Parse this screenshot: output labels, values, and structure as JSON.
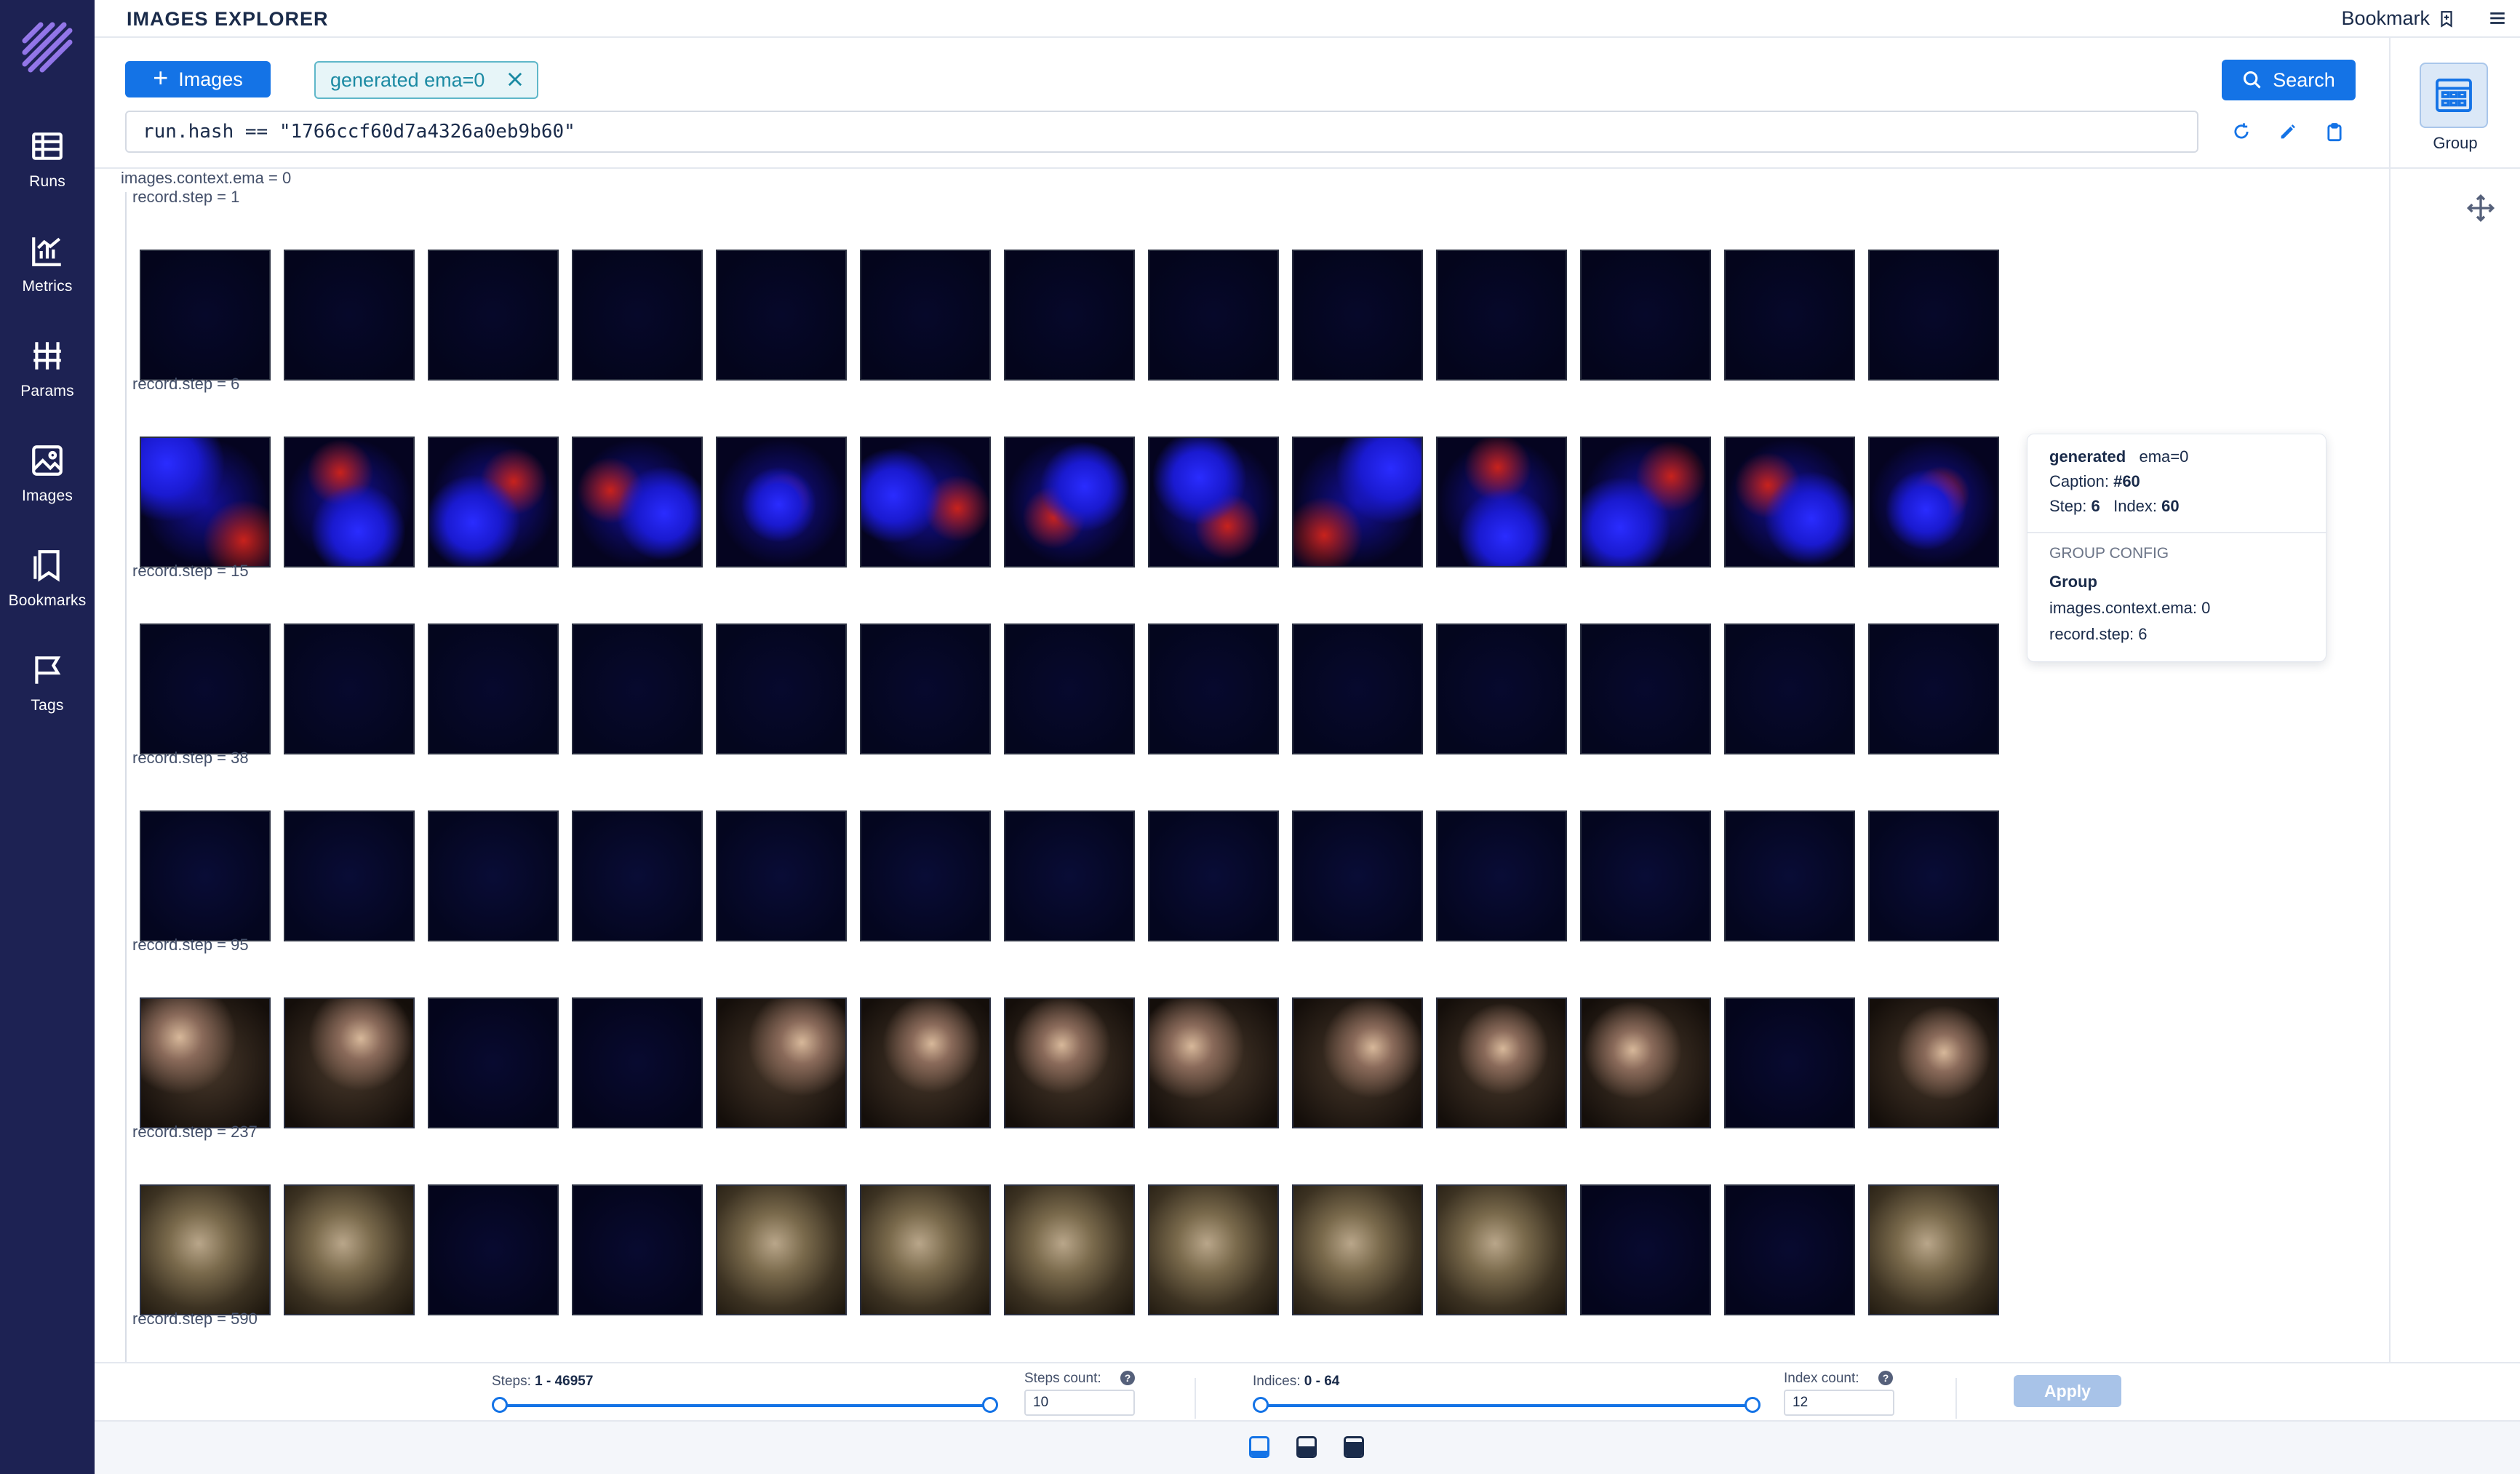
{
  "nav": {
    "items": [
      {
        "label": "Runs",
        "icon": "table-icon"
      },
      {
        "label": "Metrics",
        "icon": "chart-icon"
      },
      {
        "label": "Params",
        "icon": "params-icon"
      },
      {
        "label": "Images",
        "icon": "image-icon"
      },
      {
        "label": "Bookmarks",
        "icon": "bookmark-icon"
      },
      {
        "label": "Tags",
        "icon": "flag-icon"
      }
    ]
  },
  "header": {
    "title": "IMAGES EXPLORER",
    "bookmark_label": "Bookmark"
  },
  "search": {
    "add_button_label": "Images",
    "chip_label": "generated ema=0",
    "query": "run.hash == \"1766ccf60d7a4326a0eb9b60\"",
    "search_button_label": "Search"
  },
  "group_panel": {
    "label": "Group"
  },
  "content": {
    "group_label": "images.context.ema = 0",
    "steps": [
      {
        "label": "record.step = 1"
      },
      {
        "label": "record.step = 6"
      },
      {
        "label": "record.step = 15"
      },
      {
        "label": "record.step = 38"
      },
      {
        "label": "record.step = 95"
      },
      {
        "label": "record.step = 237"
      },
      {
        "label": "record.step = 590"
      }
    ]
  },
  "tooltip": {
    "name": "generated",
    "context": "ema=0",
    "caption_label": "Caption:",
    "caption_value": "#60",
    "step_label": "Step:",
    "step_value": "6",
    "index_label": "Index:",
    "index_value": "60",
    "section_title": "GROUP CONFIG",
    "group_heading": "Group",
    "group_line_1": "images.context.ema: 0",
    "group_line_2": "record.step: 6"
  },
  "controls": {
    "steps_label": "Steps:",
    "steps_range": "1 - 46957",
    "steps_count_label": "Steps count:",
    "steps_count_value": "10",
    "indices_label": "Indices:",
    "indices_range": "0 - 64",
    "index_count_label": "Index count:",
    "index_count_value": "12",
    "apply_label": "Apply"
  },
  "colors": {
    "sidebar_bg": "#1d2253",
    "accent": "#1473e6",
    "chip_bg": "#e7f5f8",
    "chip_text": "#1b8aa3"
  }
}
